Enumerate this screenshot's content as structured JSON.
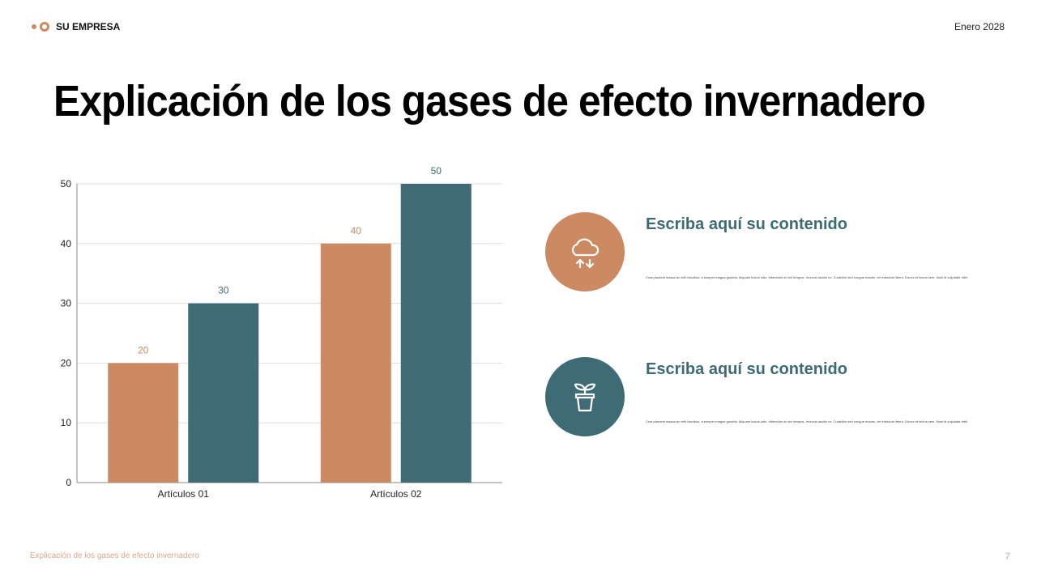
{
  "header": {
    "logo": "SU EMPRESA",
    "date": "Enero 2028"
  },
  "title": "Explicación de los gases de efecto invernadero",
  "chart_data": {
    "type": "bar",
    "categories": [
      "Artículos 01",
      "Artículos 02"
    ],
    "series": [
      {
        "values": [
          20,
          40
        ],
        "color": "#cb8a62"
      },
      {
        "values": [
          30,
          50
        ],
        "color": "#3e6b75"
      }
    ],
    "ylim": [
      0,
      50
    ],
    "yticks": [
      0,
      10,
      20,
      30,
      40,
      50
    ],
    "grid": true
  },
  "items": [
    {
      "icon": "cloud-transfer-icon",
      "title": "Escriba aquí su contenido",
      "body": "Cras placerat massa ac velit faucibus, a semper magna gravida. Aliquam luctus odio, bibendum at orci tempus, rhoncus iaculis ex. Curabitur sed congue mauris, vel interdum libero. Donec et lectus sem. Nam id vulputate nibh",
      "color": "#cb8a62"
    },
    {
      "icon": "plant-pot-icon",
      "title": "Escriba aquí su contenido",
      "body": "Cras placerat massa ac velit faucibus, a semper magna gravida. Aliquam luctus odio, bibendum at orci tempus, rhoncus iaculis ex. Curabitur sed congue mauris, vel interdum libero. Donec et lectus sem. Nam id vulputate nibh",
      "color": "#3e6b75"
    }
  ],
  "footer": {
    "text": "Explicación de los gases de efecto invernadero",
    "page": "7"
  }
}
